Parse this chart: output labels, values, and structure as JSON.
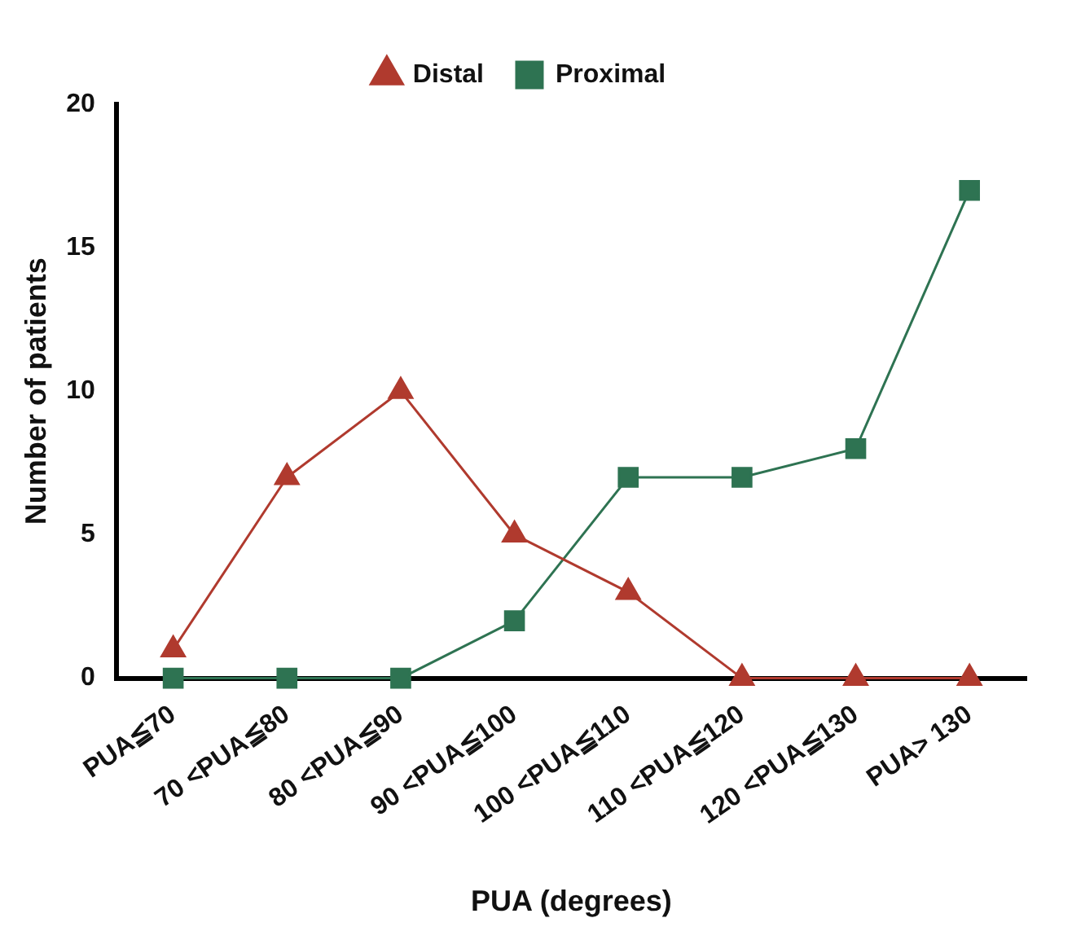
{
  "chart_data": {
    "type": "line",
    "xlabel": "PUA (degrees)",
    "ylabel": "Number of patients",
    "categories": [
      "PUA≦70",
      "70 <PUA≦80",
      "80 <PUA≦90",
      "90 <PUA≦100",
      "100 <PUA≦110",
      "110 <PUA≦120",
      "120 <PUA≦130",
      "PUA> 130"
    ],
    "series": [
      {
        "name": "Distal",
        "color": "#b03a2e",
        "marker": "triangle",
        "values": [
          1,
          7,
          10,
          5,
          3,
          0,
          0,
          0
        ]
      },
      {
        "name": "Proximal",
        "color": "#2e7352",
        "marker": "square",
        "values": [
          0,
          0,
          0,
          2,
          7,
          7,
          8,
          17
        ]
      }
    ],
    "ylim": [
      0,
      20
    ],
    "yticks": [
      0,
      5,
      10,
      15,
      20
    ],
    "grid": false,
    "legend": "top",
    "line_style": "solid"
  }
}
